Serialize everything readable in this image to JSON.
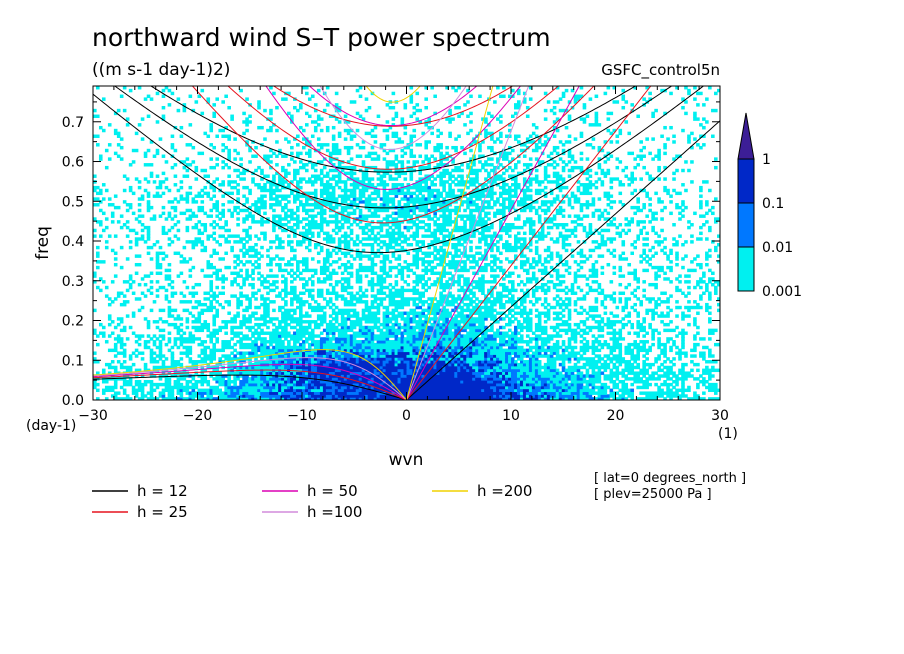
{
  "chart_data": {
    "type": "heatmap",
    "title": "northward wind S–T power spectrum",
    "subtitle": "((m s-1 day-1)2)",
    "run_label": "GSFC_control5n",
    "xlabel": "wvn",
    "ylabel": "freq",
    "x_unit": "(1)",
    "y_unit": "(day-1)",
    "xlim": [
      -30,
      30
    ],
    "ylim": [
      0,
      0.79
    ],
    "x_ticks": [
      -30,
      -20,
      -10,
      0,
      10,
      20,
      30
    ],
    "y_ticks": [
      0.0,
      0.1,
      0.2,
      0.3,
      0.4,
      0.5,
      0.6,
      0.7
    ],
    "colorbar": {
      "levels": [
        0.001,
        0.01,
        0.1,
        1
      ],
      "labels": [
        "0.001",
        "0.01",
        "0.1",
        "1"
      ],
      "colors": [
        "#00f0f0",
        "#0078ff",
        "#0028c8",
        "#3c1e96"
      ]
    },
    "dispersion_curves": [
      {
        "label": "h = 12",
        "h": 12,
        "color": "#000000"
      },
      {
        "label": "h = 25",
        "h": 25,
        "color": "#e6141e"
      },
      {
        "label": "h = 50",
        "h": 50,
        "color": "#dc00b4"
      },
      {
        "label": "h =100",
        "h": 100,
        "color": "#d28cdc"
      },
      {
        "label": "h =200",
        "h": 200,
        "color": "#f0d200"
      }
    ],
    "annotations": [
      "[ lat=0 degrees_north ]",
      "[ plev=25000 Pa ]"
    ]
  }
}
